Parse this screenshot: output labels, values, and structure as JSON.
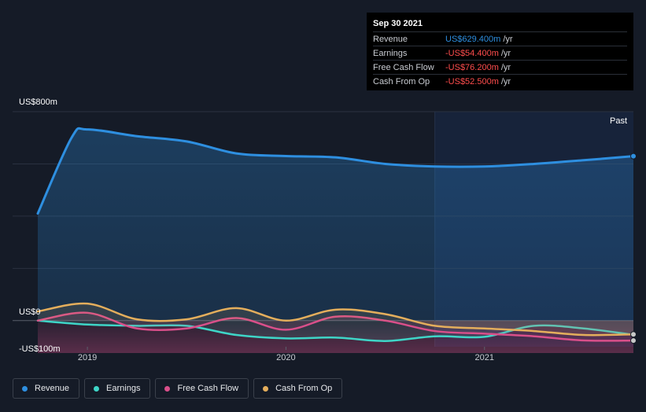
{
  "chart_data": {
    "type": "line",
    "title": "",
    "y_unit": "US$ millions",
    "ylim": [
      -100,
      800
    ],
    "y_ticks": [
      {
        "value": 800,
        "label": "US$800m"
      },
      {
        "value": 0,
        "label": "US$0"
      },
      {
        "value": -100,
        "label": "-US$100m"
      }
    ],
    "x_ticks": [
      {
        "value": 2019.0,
        "label": "2019"
      },
      {
        "value": 2020.0,
        "label": "2020"
      },
      {
        "value": 2021.0,
        "label": "2021"
      }
    ],
    "xlim": [
      2018.75,
      2021.75
    ],
    "past_region_start": 2020.75,
    "past_label": "Past",
    "series": [
      {
        "name": "Revenue",
        "color": "#2e8fe0",
        "fill": true,
        "x": [
          2018.75,
          2018.92,
          2019.0,
          2019.25,
          2019.5,
          2019.75,
          2020.0,
          2020.25,
          2020.5,
          2020.75,
          2021.0,
          2021.25,
          2021.5,
          2021.75
        ],
        "values": [
          410,
          700,
          732,
          706,
          686,
          640,
          630,
          625,
          600,
          590,
          590,
          600,
          614,
          629.4
        ]
      },
      {
        "name": "Earnings",
        "color": "#3ed5c7",
        "fill": false,
        "x": [
          2018.75,
          2019.0,
          2019.25,
          2019.5,
          2019.75,
          2020.0,
          2020.25,
          2020.5,
          2020.75,
          2021.0,
          2021.25,
          2021.5,
          2021.75
        ],
        "values": [
          0,
          -15,
          -20,
          -20,
          -55,
          -68,
          -65,
          -78,
          -60,
          -62,
          -20,
          -30,
          -54.4
        ]
      },
      {
        "name": "Free Cash Flow",
        "color": "#d94f8a",
        "fill": false,
        "x": [
          2018.75,
          2019.0,
          2019.25,
          2019.5,
          2019.75,
          2020.0,
          2020.25,
          2020.5,
          2020.75,
          2021.0,
          2021.25,
          2021.5,
          2021.75
        ],
        "values": [
          0,
          30,
          -30,
          -30,
          10,
          -35,
          15,
          0,
          -40,
          -50,
          -60,
          -76,
          -76.2
        ]
      },
      {
        "name": "Cash From Op",
        "color": "#e4ae5c",
        "fill": false,
        "x": [
          2018.75,
          2019.0,
          2019.25,
          2019.5,
          2019.75,
          2020.0,
          2020.25,
          2020.5,
          2020.75,
          2021.0,
          2021.25,
          2021.5,
          2021.75
        ],
        "values": [
          35,
          65,
          5,
          5,
          48,
          0,
          42,
          25,
          -20,
          -30,
          -40,
          -55,
          -52.5
        ]
      }
    ]
  },
  "tooltip": {
    "date": "Sep 30 2021",
    "unit": "/yr",
    "rows": [
      {
        "label": "Revenue",
        "value": "US$629.400m",
        "color": "#2e8fe0"
      },
      {
        "label": "Earnings",
        "value": "-US$54.400m",
        "color": "#ff4d4d"
      },
      {
        "label": "Free Cash Flow",
        "value": "-US$76.200m",
        "color": "#ff4d4d"
      },
      {
        "label": "Cash From Op",
        "value": "-US$52.500m",
        "color": "#ff4d4d"
      }
    ]
  },
  "legend": [
    {
      "label": "Revenue",
      "color": "#2e8fe0"
    },
    {
      "label": "Earnings",
      "color": "#3ed5c7"
    },
    {
      "label": "Free Cash Flow",
      "color": "#d94f8a"
    },
    {
      "label": "Cash From Op",
      "color": "#e4ae5c"
    }
  ]
}
